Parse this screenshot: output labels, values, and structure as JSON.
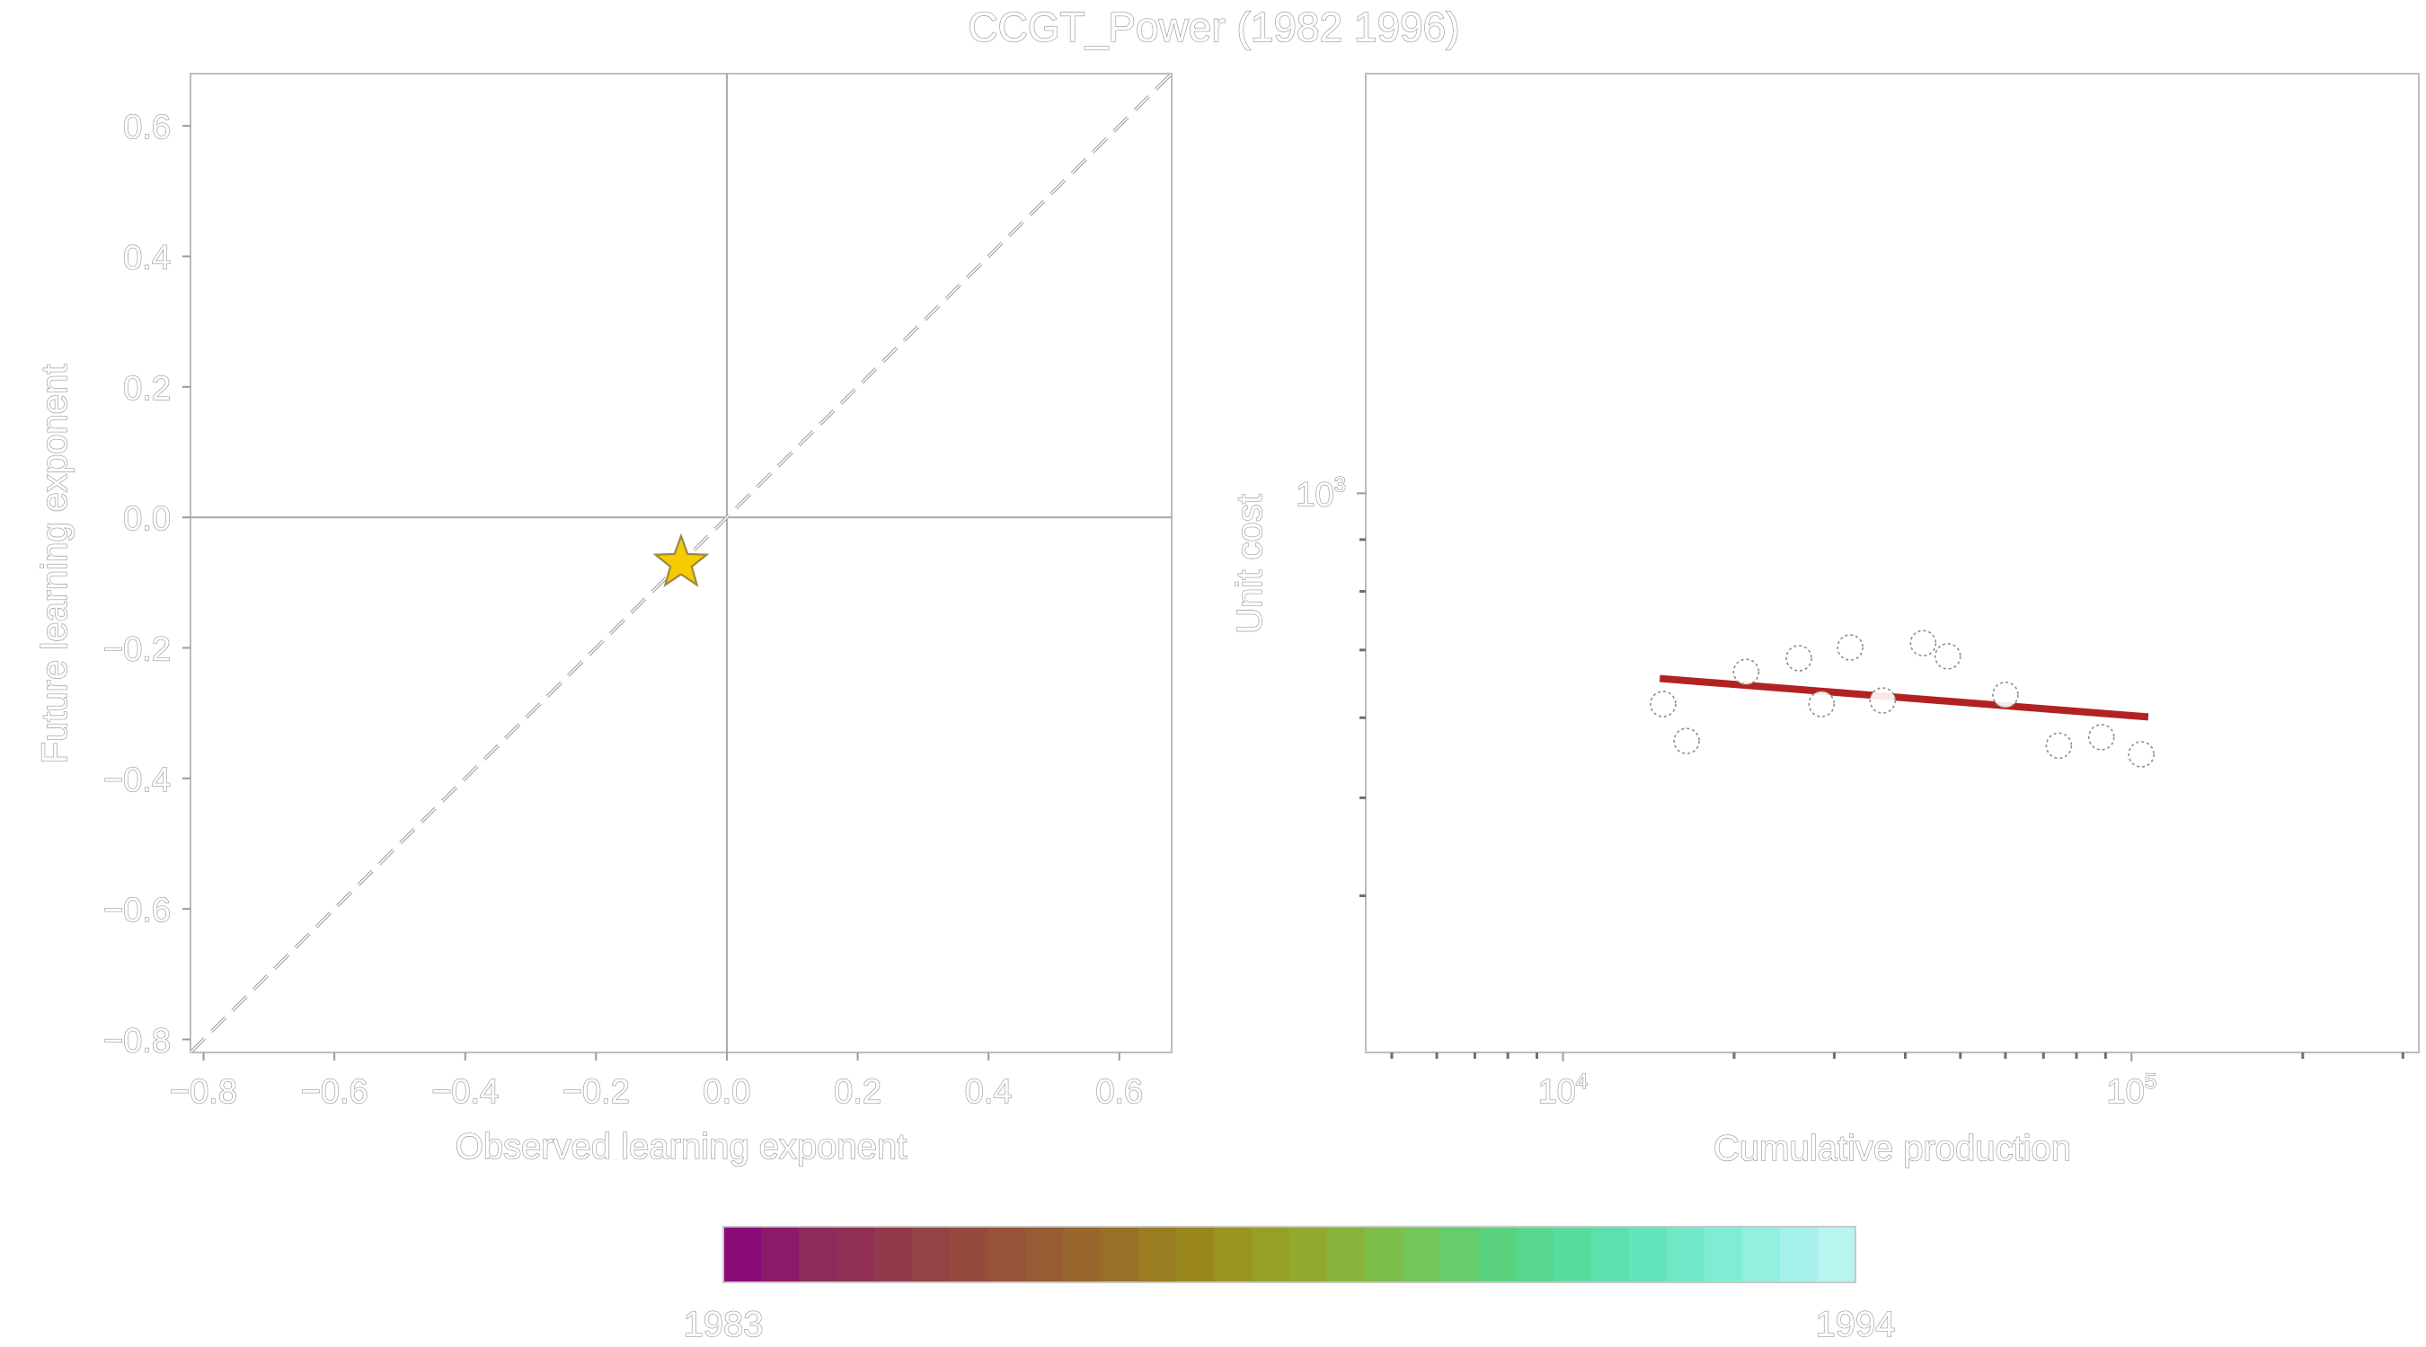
{
  "title": "CCGT_Power (1982 1996)",
  "colors": {
    "star_fill": "#f7cb00",
    "star_stroke": "#9a8a40",
    "fit_line": "#b22222",
    "axis": "#bdbdbd",
    "text_outline": "#9a9a9a"
  },
  "chart_data": [
    {
      "type": "scatter",
      "xlabel": "Observed learning exponent",
      "ylabel": "Future learning exponent",
      "xlim": [
        -0.82,
        0.68
      ],
      "ylim": [
        -0.82,
        0.68
      ],
      "xticks": [
        -0.8,
        -0.6,
        -0.4,
        -0.2,
        0.0,
        0.2,
        0.4,
        0.6
      ],
      "xtick_labels": [
        "−0.8",
        "−0.6",
        "−0.4",
        "−0.2",
        "0.0",
        "0.2",
        "0.4",
        "0.6"
      ],
      "yticks": [
        -0.8,
        -0.6,
        -0.4,
        -0.2,
        0.0,
        0.2,
        0.4,
        0.6
      ],
      "ytick_labels": [
        "−0.8",
        "−0.6",
        "−0.4",
        "−0.2",
        "0.0",
        "0.2",
        "0.4",
        "0.6"
      ],
      "reference_line": "y = x (dashed)",
      "zero_lines": true,
      "points": [
        {
          "x": -0.07,
          "y": -0.07,
          "marker": "star-icon"
        }
      ]
    },
    {
      "type": "scatter",
      "xlabel": "Cumulative production",
      "ylabel": "Unit cost",
      "xscale": "log",
      "yscale": "log",
      "xlim": [
        4500,
        320000
      ],
      "ylim": [
        280,
        2600
      ],
      "xticks_major": [
        10000,
        100000
      ],
      "xtick_major_labels": [
        {
          "base": "10",
          "exp": "4"
        },
        {
          "base": "10",
          "exp": "5"
        }
      ],
      "xticks_minor": [
        5000,
        6000,
        7000,
        8000,
        9000,
        20000,
        30000,
        40000,
        50000,
        60000,
        70000,
        80000,
        90000,
        200000,
        300000
      ],
      "yticks_major": [
        1000
      ],
      "ytick_major_labels": [
        {
          "base": "10",
          "exp": "3"
        }
      ],
      "yticks_minor": [
        400,
        500,
        600,
        700,
        800,
        900
      ],
      "points": [
        {
          "x": 15000,
          "y": 619
        },
        {
          "x": 16500,
          "y": 569
        },
        {
          "x": 21000,
          "y": 666
        },
        {
          "x": 26000,
          "y": 687
        },
        {
          "x": 28500,
          "y": 619
        },
        {
          "x": 32000,
          "y": 704
        },
        {
          "x": 36500,
          "y": 624
        },
        {
          "x": 43000,
          "y": 711
        },
        {
          "x": 47500,
          "y": 690
        },
        {
          "x": 60000,
          "y": 632
        },
        {
          "x": 74500,
          "y": 563
        },
        {
          "x": 88500,
          "y": 574
        },
        {
          "x": 104000,
          "y": 552
        }
      ],
      "fit_line": {
        "x": [
          14800,
          107000
        ],
        "y": [
          656,
          601
        ]
      }
    }
  ],
  "colorbar": {
    "min_label": "1983",
    "max_label": "1994",
    "colors": [
      "#8a0a78",
      "#8c1a6a",
      "#8e2a5c",
      "#902e54",
      "#933a4a",
      "#944244",
      "#964a3e",
      "#97523a",
      "#985c34",
      "#99662e",
      "#9a7028",
      "#9a7c22",
      "#9a881e",
      "#999420",
      "#96a026",
      "#90aa30",
      "#88b43c",
      "#7ebe4a",
      "#72c65a",
      "#66cc6c",
      "#5cd27e",
      "#58d88e",
      "#58dc9e",
      "#5ce0ae",
      "#64e4bc",
      "#70e8c8",
      "#80ecd4",
      "#92f0e0",
      "#a6f2ea",
      "#b8f4f0"
    ]
  }
}
